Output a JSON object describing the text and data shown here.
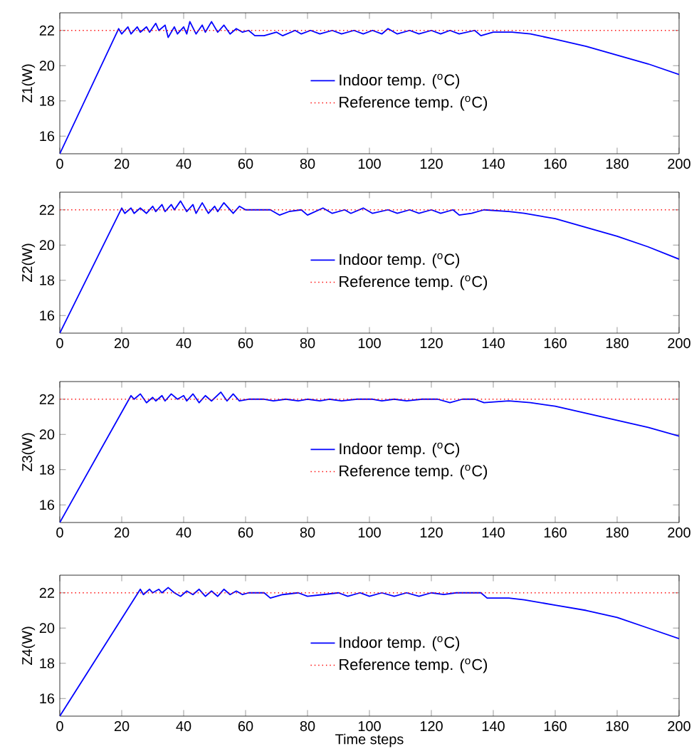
{
  "chart_data": [
    {
      "type": "line",
      "ylabel": "Z1(W)",
      "xlim": [
        0,
        200
      ],
      "ylim": [
        15,
        23
      ],
      "xticks": [
        0,
        20,
        40,
        60,
        80,
        100,
        120,
        140,
        160,
        180,
        200
      ],
      "yticks": [
        16,
        18,
        20,
        22
      ],
      "legend": "center",
      "grid": false,
      "marker": "none",
      "series": [
        {
          "name": "Indoor temp. ($^{o}$C)",
          "color": "#0000ff",
          "line_style": "solid",
          "x": [
            0,
            19,
            20,
            22,
            23,
            25,
            26,
            28,
            29,
            31,
            32,
            34,
            35,
            37,
            38,
            40,
            41,
            42,
            44,
            46,
            47,
            49,
            51,
            53,
            55,
            57,
            59,
            61,
            63,
            66,
            70,
            72,
            76,
            78,
            81,
            84,
            88,
            91,
            95,
            98,
            101,
            104,
            106,
            109,
            113,
            116,
            120,
            123,
            126,
            129,
            134,
            136,
            140,
            146,
            152,
            160,
            170,
            180,
            190,
            200
          ],
          "values": [
            15,
            22.1,
            21.8,
            22.2,
            21.8,
            22.2,
            21.9,
            22.2,
            21.9,
            22.4,
            22.0,
            22.3,
            21.6,
            22.2,
            21.8,
            22.2,
            21.8,
            22.5,
            21.8,
            22.3,
            21.9,
            22.5,
            21.9,
            22.3,
            21.8,
            22.1,
            21.9,
            22.0,
            21.7,
            21.7,
            21.9,
            21.7,
            22.0,
            21.8,
            22.0,
            21.8,
            22.0,
            21.8,
            22.0,
            21.8,
            22.0,
            21.8,
            22.1,
            21.8,
            22.0,
            21.8,
            22.0,
            21.8,
            22.0,
            21.8,
            22.0,
            21.7,
            21.9,
            21.9,
            21.8,
            21.5,
            21.1,
            20.6,
            20.1,
            19.5
          ]
        },
        {
          "name": "Reference temp. ($^{o}$C)",
          "color": "#ff0000",
          "line_style": "dotted",
          "x": [
            0,
            200
          ],
          "values": [
            22,
            22
          ]
        }
      ]
    },
    {
      "type": "line",
      "ylabel": "Z2(W)",
      "xlim": [
        0,
        200
      ],
      "ylim": [
        15,
        23
      ],
      "xticks": [
        0,
        20,
        40,
        60,
        80,
        100,
        120,
        140,
        160,
        180,
        200
      ],
      "yticks": [
        16,
        18,
        20,
        22
      ],
      "legend": "center",
      "grid": false,
      "marker": "none",
      "series": [
        {
          "name": "Indoor temp. ($^{o}$C)",
          "color": "#0000ff",
          "line_style": "solid",
          "x": [
            0,
            20,
            21,
            23,
            24,
            26,
            28,
            30,
            31,
            33,
            34,
            36,
            37,
            39,
            41,
            43,
            44,
            46,
            48,
            50,
            51,
            53,
            56,
            58,
            60,
            68,
            71,
            74,
            78,
            80,
            85,
            88,
            92,
            94,
            98,
            101,
            106,
            109,
            113,
            116,
            120,
            123,
            127,
            129,
            133,
            137,
            145,
            150,
            160,
            170,
            180,
            190,
            200
          ],
          "values": [
            15,
            22.1,
            21.8,
            22.1,
            21.8,
            22.1,
            21.8,
            22.2,
            21.9,
            22.3,
            21.9,
            22.3,
            22.0,
            22.5,
            21.9,
            22.3,
            21.8,
            22.4,
            21.8,
            22.2,
            21.9,
            22.4,
            21.8,
            22.2,
            22.0,
            22.0,
            21.7,
            21.9,
            22.0,
            21.7,
            22.1,
            21.8,
            22.0,
            21.8,
            22.1,
            21.8,
            22.0,
            21.8,
            22.0,
            21.8,
            22.0,
            21.8,
            22.0,
            21.7,
            21.8,
            22.0,
            21.9,
            21.8,
            21.5,
            21.0,
            20.5,
            19.9,
            19.2
          ]
        },
        {
          "name": "Reference temp. ($^{o}$C)",
          "color": "#ff0000",
          "line_style": "dotted",
          "x": [
            0,
            200
          ],
          "values": [
            22,
            22
          ]
        }
      ]
    },
    {
      "type": "line",
      "ylabel": "Z3(W)",
      "xlim": [
        0,
        200
      ],
      "ylim": [
        15,
        23
      ],
      "xticks": [
        0,
        20,
        40,
        60,
        80,
        100,
        120,
        140,
        160,
        180,
        200
      ],
      "yticks": [
        16,
        18,
        20,
        22
      ],
      "legend": "center",
      "grid": false,
      "marker": "none",
      "series": [
        {
          "name": "Indoor temp. ($^{o}$C)",
          "color": "#0000ff",
          "line_style": "solid",
          "x": [
            0,
            23,
            24,
            26,
            28,
            30,
            31,
            33,
            34,
            36,
            38,
            40,
            41,
            43,
            45,
            47,
            49,
            52,
            54,
            56,
            58,
            61,
            66,
            69,
            73,
            77,
            80,
            84,
            87,
            91,
            96,
            101,
            104,
            108,
            112,
            117,
            122,
            126,
            130,
            134,
            137,
            145,
            152,
            160,
            170,
            180,
            190,
            200
          ],
          "values": [
            15,
            22.2,
            22.0,
            22.3,
            21.8,
            22.1,
            21.9,
            22.2,
            21.9,
            22.3,
            22.0,
            22.2,
            21.9,
            22.3,
            21.8,
            22.2,
            21.9,
            22.4,
            21.9,
            22.3,
            21.9,
            22.0,
            22.0,
            21.9,
            22.0,
            21.9,
            22.0,
            21.9,
            22.0,
            21.9,
            22.0,
            22.0,
            21.9,
            22.0,
            21.9,
            22.0,
            22.0,
            21.8,
            22.0,
            22.0,
            21.8,
            21.9,
            21.8,
            21.6,
            21.2,
            20.8,
            20.4,
            19.9
          ]
        },
        {
          "name": "Reference temp. ($^{o}$C)",
          "color": "#ff0000",
          "line_style": "dotted",
          "x": [
            0,
            200
          ],
          "values": [
            22,
            22
          ]
        }
      ]
    },
    {
      "type": "line",
      "ylabel": "Z4(W)",
      "xlabel": "Time steps",
      "xlim": [
        0,
        200
      ],
      "ylim": [
        15,
        23
      ],
      "xticks": [
        0,
        20,
        40,
        60,
        80,
        100,
        120,
        140,
        160,
        180,
        200
      ],
      "yticks": [
        16,
        18,
        20,
        22
      ],
      "legend": "center",
      "grid": false,
      "marker": "none",
      "series": [
        {
          "name": "Indoor temp. ($^{o}$C)",
          "color": "#0000ff",
          "line_style": "solid",
          "x": [
            0,
            26,
            27,
            29,
            30,
            32,
            33,
            35,
            37,
            39,
            41,
            43,
            45,
            47,
            49,
            51,
            53,
            55,
            57,
            59,
            61,
            66,
            68,
            72,
            77,
            80,
            85,
            90,
            93,
            97,
            100,
            104,
            108,
            112,
            116,
            120,
            124,
            128,
            136,
            138,
            145,
            150,
            160,
            170,
            180,
            190,
            200
          ],
          "values": [
            15,
            22.2,
            21.9,
            22.2,
            22.0,
            22.2,
            22.0,
            22.3,
            22.0,
            21.8,
            22.1,
            21.9,
            22.2,
            21.8,
            22.1,
            21.8,
            22.2,
            21.9,
            22.1,
            21.9,
            22.0,
            22.0,
            21.7,
            21.9,
            22.0,
            21.8,
            21.9,
            22.0,
            21.8,
            22.0,
            21.8,
            22.0,
            21.8,
            22.0,
            21.8,
            22.0,
            21.9,
            22.0,
            22.0,
            21.7,
            21.7,
            21.6,
            21.3,
            21.0,
            20.6,
            20.0,
            19.4
          ]
        },
        {
          "name": "Reference temp. ($^{o}$C)",
          "color": "#ff0000",
          "line_style": "dotted",
          "x": [
            0,
            200
          ],
          "values": [
            22,
            22
          ]
        }
      ]
    }
  ]
}
